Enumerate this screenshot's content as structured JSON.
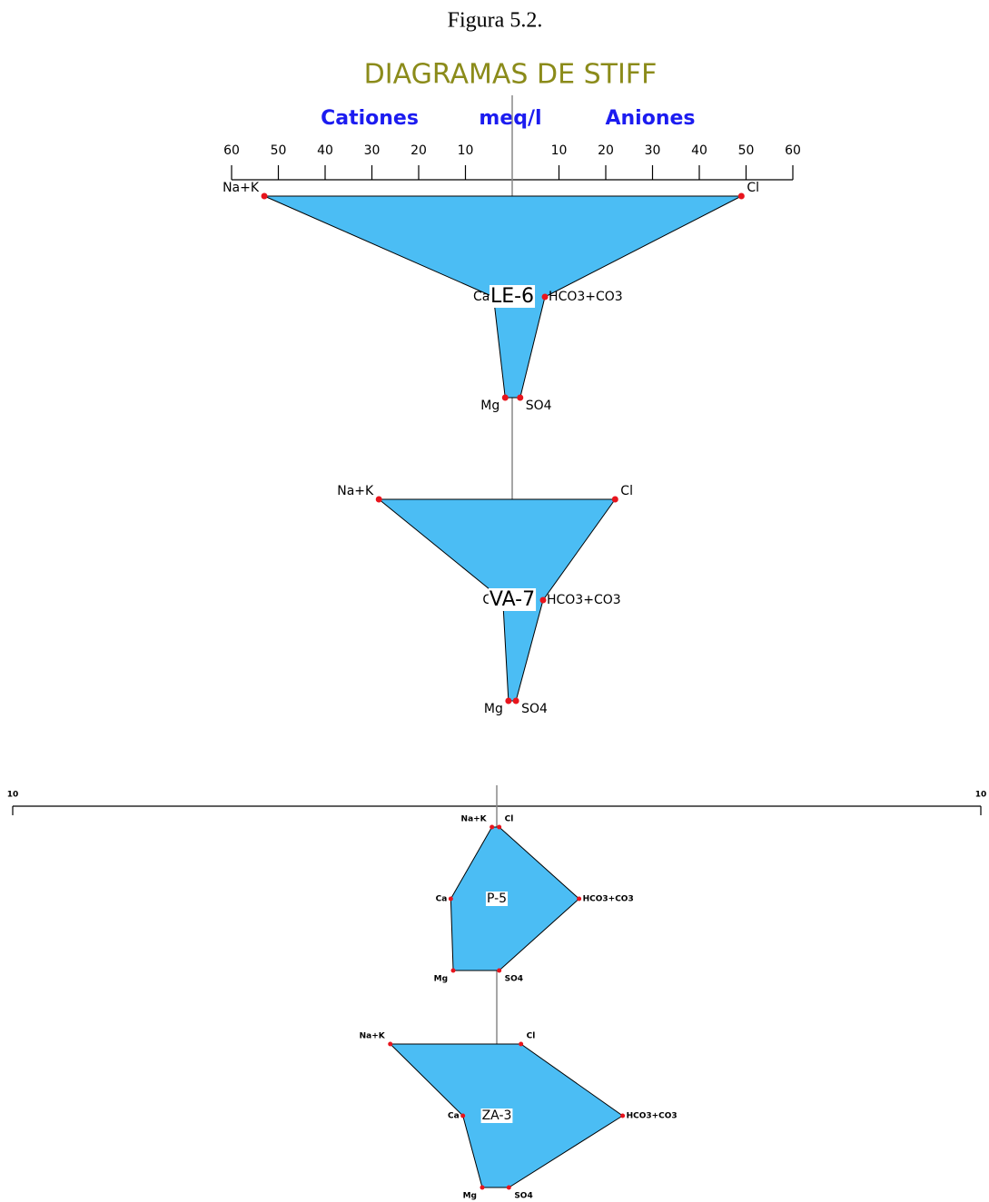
{
  "caption": "Figura 5.2.",
  "chart_data": [
    {
      "type": "stiff",
      "title": "DIAGRAMAS DE STIFF",
      "left_label": "Cationes",
      "axis_label": "meq/l",
      "right_label": "Aniones",
      "xlim": [
        -60,
        60
      ],
      "xticks": [
        {
          "value": -60,
          "label": "60"
        },
        {
          "value": -50,
          "label": "50"
        },
        {
          "value": -40,
          "label": "40"
        },
        {
          "value": -30,
          "label": "30"
        },
        {
          "value": -20,
          "label": "20"
        },
        {
          "value": -10,
          "label": "10"
        },
        10,
        20,
        30,
        40,
        50,
        60
      ],
      "ions_left": [
        "Na+K",
        "Ca",
        "Mg"
      ],
      "ions_right": [
        "Cl",
        "HCO3+CO3",
        "SO4"
      ],
      "color": "#4bbdf4",
      "point_color": "#e8141c",
      "samples": [
        {
          "name": "LE-6",
          "cations": [
            53,
            4,
            1.5
          ],
          "anions": [
            49,
            7,
            1.7
          ]
        },
        {
          "name": "VA-7",
          "cations": [
            28.5,
            2,
            0.8
          ],
          "anions": [
            22,
            6.6,
            0.8
          ]
        }
      ]
    },
    {
      "type": "stiff",
      "xlim": [
        -10,
        10
      ],
      "xticks": [
        {
          "value": -10,
          "label": "10"
        },
        10
      ],
      "ions_left": [
        "Na+K",
        "Ca",
        "Mg"
      ],
      "ions_right": [
        "Cl",
        "HCO3+CO3",
        "SO4"
      ],
      "color": "#4bbdf4",
      "point_color": "#e8141c",
      "samples": [
        {
          "name": "P-5",
          "cations": [
            0.1,
            0.95,
            0.9
          ],
          "anions": [
            0.05,
            1.7,
            0.05
          ]
        },
        {
          "name": "ZA-3",
          "cations": [
            2.2,
            0.7,
            0.3
          ],
          "anions": [
            0.5,
            2.6,
            0.25
          ]
        }
      ]
    }
  ]
}
